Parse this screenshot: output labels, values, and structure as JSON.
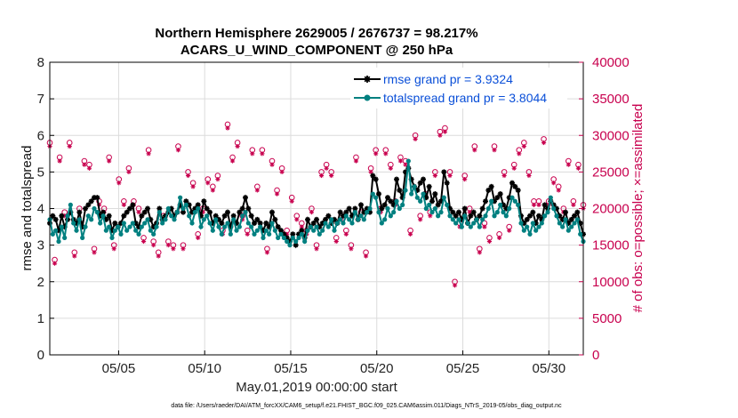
{
  "chart_data": {
    "type": "line",
    "title": "Northern Hemisphere 2629005 / 2676737 = 98.217%",
    "subtitle": "ACARS_U_WIND_COMPONENT @ 250 hPa",
    "xlabel": "May.01,2019 00:00:00 start",
    "ylabel_left": "rmse and totalspread",
    "ylabel_right": "# of obs: o=possible; ×=assimilated",
    "footer": "data file: /Users/raeder/DAI/ATM_forcXX/CAM6_setup/f.e21.FHIST_BGC.f09_025.CAM6assim.011/Diags_NTrS_2019-05/obs_diag_output.nc",
    "xlim": [
      1,
      32
    ],
    "ylim_left": [
      0,
      8
    ],
    "ylim_right": [
      0,
      40000
    ],
    "grid": true,
    "legend_position": "top-right",
    "x_ticks": [
      5,
      10,
      15,
      20,
      25,
      30
    ],
    "x_tick_labels": [
      "05/05",
      "05/10",
      "05/15",
      "05/20",
      "05/25",
      "05/30"
    ],
    "y_ticks_left": [
      0,
      1,
      2,
      3,
      4,
      5,
      6,
      7,
      8
    ],
    "y_ticks_right": [
      0,
      5000,
      10000,
      15000,
      20000,
      25000,
      30000,
      35000,
      40000
    ],
    "colors": {
      "rmse": "#000000",
      "totalspread": "#008080",
      "obs": "#c8004e",
      "legend_text": "#0a4fd8"
    },
    "series": [
      {
        "name": "rmse grand pr = 3.9324",
        "marker": "asterisk",
        "values": [
          3.6,
          3.8,
          3.7,
          3.4,
          3.8,
          3.5,
          3.7,
          3.9,
          3.7,
          3.6,
          3.9,
          3.5,
          4.0,
          4.1,
          4.2,
          4.3,
          4.3,
          3.8,
          3.9,
          3.7,
          3.8,
          3.4,
          3.6,
          3.5,
          3.6,
          3.8,
          3.9,
          4.0,
          4.1,
          3.6,
          3.5,
          3.8,
          3.9,
          4.0,
          3.7,
          3.5,
          3.6,
          4.0,
          3.7,
          3.8,
          3.9,
          4.0,
          3.8,
          3.9,
          4.1,
          3.9,
          4.2,
          4.1,
          3.9,
          4.0,
          4.1,
          3.8,
          4.2,
          4.0,
          3.9,
          3.6,
          3.8,
          3.7,
          3.6,
          3.8,
          3.9,
          3.5,
          3.8,
          3.6,
          3.9,
          4.0,
          4.3,
          4.0,
          3.8,
          3.6,
          3.7,
          3.6,
          3.4,
          3.6,
          3.5,
          3.9,
          3.7,
          3.5,
          3.4,
          3.3,
          3.2,
          3.1,
          3.3,
          3.0,
          3.3,
          3.4,
          3.2,
          3.7,
          3.5,
          3.6,
          3.7,
          3.5,
          3.6,
          3.7,
          3.8,
          3.6,
          3.7,
          3.6,
          3.9,
          3.8,
          3.9,
          4.0,
          3.8,
          4.0,
          3.7,
          4.1,
          3.9,
          4.0,
          3.9,
          4.9,
          4.8,
          4.4,
          4.0,
          4.1,
          4.3,
          4.2,
          4.1,
          4.8,
          4.5,
          4.3,
          5.0,
          5.1,
          4.8,
          4.6,
          4.5,
          4.7,
          4.8,
          4.3,
          4.6,
          4.2,
          4.4,
          4.1,
          4.2,
          5.0,
          4.7,
          4.0,
          3.9,
          3.8,
          3.9,
          3.7,
          4.0,
          3.6,
          3.8,
          3.9,
          3.7,
          3.8,
          4.0,
          4.2,
          4.5,
          4.6,
          4.2,
          4.3,
          4.4,
          4.1,
          4.0,
          4.3,
          4.7,
          4.6,
          4.5,
          3.8,
          3.6,
          3.7,
          3.8,
          3.9,
          3.6,
          3.8,
          3.7,
          4.1,
          4.0,
          4.2,
          4.1,
          4.0,
          3.8,
          3.7,
          3.9,
          3.6,
          3.7,
          3.8,
          3.9,
          3.6,
          3.3
        ]
      },
      {
        "name": "totalspread grand pr = 3.8044",
        "marker": "circle",
        "values": [
          3.7,
          3.3,
          3.4,
          3.1,
          3.5,
          3.2,
          3.8,
          4.1,
          3.6,
          3.4,
          3.7,
          3.2,
          3.5,
          3.8,
          3.7,
          4.0,
          3.9,
          3.6,
          3.8,
          3.4,
          3.5,
          3.2,
          3.4,
          3.5,
          3.3,
          3.6,
          3.4,
          3.5,
          3.6,
          3.4,
          3.3,
          3.5,
          3.6,
          3.7,
          3.4,
          3.3,
          3.5,
          3.9,
          3.6,
          3.7,
          4.0,
          3.8,
          3.7,
          3.9,
          4.3,
          4.0,
          4.1,
          3.8,
          3.6,
          3.9,
          4.0,
          3.5,
          3.7,
          3.8,
          3.6,
          3.4,
          3.7,
          3.5,
          3.3,
          3.5,
          3.6,
          3.3,
          3.7,
          3.4,
          3.5,
          3.8,
          3.9,
          3.6,
          3.5,
          3.3,
          3.4,
          3.5,
          3.2,
          3.4,
          3.3,
          3.6,
          3.4,
          3.2,
          3.3,
          3.2,
          3.1,
          3.0,
          3.2,
          3.1,
          3.2,
          3.3,
          3.1,
          3.4,
          3.5,
          3.4,
          3.5,
          3.3,
          3.4,
          3.6,
          3.5,
          3.7,
          3.4,
          3.6,
          3.7,
          3.6,
          3.8,
          3.7,
          3.6,
          3.9,
          3.7,
          3.8,
          3.7,
          3.9,
          4.0,
          4.4,
          4.3,
          3.9,
          3.6,
          3.7,
          4.0,
          3.8,
          3.9,
          4.2,
          4.0,
          4.1,
          4.5,
          5.3,
          4.4,
          4.6,
          4.3,
          4.2,
          4.4,
          4.0,
          4.1,
          3.9,
          4.0,
          3.8,
          3.9,
          4.3,
          4.1,
          3.8,
          3.7,
          3.6,
          3.7,
          3.5,
          3.8,
          3.6,
          3.5,
          3.6,
          3.7,
          3.5,
          3.7,
          3.8,
          4.0,
          4.2,
          3.8,
          3.9,
          4.1,
          3.9,
          3.8,
          4.0,
          4.3,
          4.2,
          4.1,
          3.6,
          3.4,
          3.5,
          3.3,
          3.6,
          3.4,
          3.5,
          3.6,
          3.8,
          3.9,
          4.3,
          4.0,
          3.8,
          3.6,
          3.5,
          3.7,
          3.4,
          3.5,
          3.6,
          3.7,
          3.3,
          3.1
        ]
      }
    ],
    "obs_possible": [
      29000,
      13000,
      27000,
      19500,
      29000,
      14000,
      20000,
      26500,
      26000,
      14500,
      21000,
      20000,
      27000,
      15000,
      24000,
      21000,
      25500,
      21000,
      20000,
      16000,
      28000,
      15500,
      14000,
      19000,
      15500,
      15000,
      28500,
      15000,
      25000,
      23500,
      16500,
      20000,
      24000,
      23000,
      24500,
      17000,
      31500,
      27000,
      29000,
      19000,
      17000,
      28000,
      23000,
      28000,
      14500,
      26500,
      22500,
      25500,
      17000,
      21500,
      19000,
      18000,
      17000,
      20000,
      15000,
      25000,
      26000,
      25000,
      16000,
      19000,
      17000,
      15000,
      27000,
      19500,
      14000,
      25500,
      28000,
      20000,
      28000,
      26000,
      21000,
      27000,
      26500,
      17000,
      30000,
      19000,
      22000,
      19500,
      25000,
      30500,
      31000,
      25000,
      10000,
      18000,
      24500,
      20000,
      28500,
      14500,
      18000,
      16000,
      28500,
      16500,
      25000,
      17500,
      26000,
      28000,
      29000,
      25000,
      21000,
      21000,
      29500,
      21000,
      24000,
      23000,
      20000,
      26500,
      21000,
      26000,
      20500
    ],
    "obs_assimilated": [
      28500,
      12500,
      26500,
      19000,
      28500,
      13500,
      19500,
      26000,
      25500,
      14000,
      20500,
      19500,
      26500,
      14500,
      23500,
      20500,
      25000,
      20500,
      19500,
      15500,
      27500,
      15000,
      13500,
      18500,
      15000,
      14500,
      28000,
      14500,
      24500,
      23000,
      16000,
      19500,
      23500,
      22500,
      24000,
      16500,
      31000,
      26500,
      28500,
      18500,
      16500,
      27500,
      22500,
      27500,
      14000,
      26000,
      22000,
      25000,
      16500,
      21000,
      18500,
      17500,
      16500,
      19500,
      14500,
      24500,
      25500,
      24500,
      15500,
      18500,
      16500,
      14500,
      26500,
      19000,
      13500,
      25000,
      27500,
      19500,
      27500,
      25500,
      20500,
      26500,
      26000,
      16500,
      29500,
      18500,
      21500,
      19000,
      24500,
      30000,
      30500,
      24500,
      9500,
      17500,
      24000,
      19500,
      28000,
      14000,
      17500,
      15500,
      28000,
      16000,
      24500,
      17000,
      25500,
      27500,
      28500,
      24500,
      20500,
      20500,
      29000,
      20500,
      23500,
      22500,
      19500,
      26000,
      20500,
      25500,
      20000
    ]
  }
}
